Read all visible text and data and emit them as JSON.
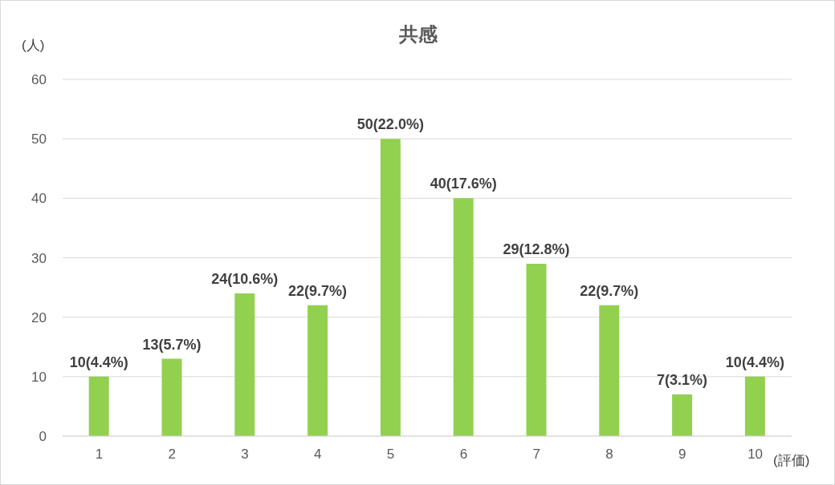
{
  "chart_data": {
    "type": "bar",
    "title": "共感",
    "ylabel": "(人)",
    "xlabel": "(評価)",
    "categories": [
      "1",
      "2",
      "3",
      "4",
      "5",
      "6",
      "7",
      "8",
      "9",
      "10"
    ],
    "values": [
      10,
      13,
      24,
      22,
      50,
      40,
      29,
      22,
      7,
      10
    ],
    "value_labels": [
      "10(4.4%)",
      "13(5.7%)",
      "24(10.6%)",
      "22(9.7%)",
      "50(22.0%)",
      "40(17.6%)",
      "29(12.8%)",
      "22(9.7%)",
      "7(3.1%)",
      "10(4.4%)"
    ],
    "color": "#92d050",
    "ylim": [
      0,
      60
    ],
    "yticks": [
      0,
      10,
      20,
      30,
      40,
      50,
      60
    ],
    "grid": "y"
  }
}
